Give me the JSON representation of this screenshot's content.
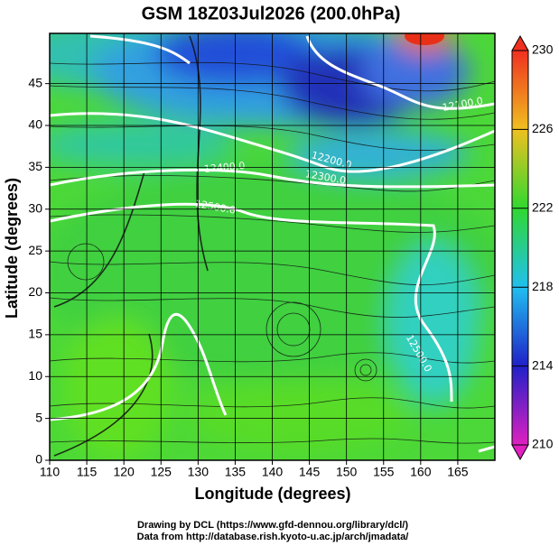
{
  "chart_data": {
    "type": "map",
    "title": "GSM 18Z03Jul2026 (200.0hPa)",
    "x_label": "Longitude (degrees)",
    "y_label": "Latitude  (degrees)",
    "xlim": [
      110,
      170
    ],
    "ylim": [
      0,
      51
    ],
    "xticks": [
      110,
      115,
      120,
      125,
      130,
      135,
      140,
      145,
      150,
      155,
      160,
      165
    ],
    "yticks": [
      0,
      5,
      10,
      15,
      20,
      25,
      30,
      35,
      40,
      45
    ],
    "grid": true,
    "colorbar": {
      "lim": [
        210,
        230
      ],
      "ticks": [
        210,
        214,
        218,
        222,
        226,
        230
      ],
      "colors": [
        "#e020c0",
        "#2020c8",
        "#20c0f0",
        "#30d830",
        "#f0c020",
        "#f03020"
      ]
    },
    "contour_labels": [
      "12100.0",
      "12200.0",
      "12300.0",
      "12400.0",
      "12500.0",
      "12500.0"
    ],
    "credits": [
      "Drawing by DCL (https://www.gfd-dennou.org/library/dcl/)",
      "Data from http://database.rish.kyoto-u.ac.jp/arch/jmadata/"
    ]
  }
}
